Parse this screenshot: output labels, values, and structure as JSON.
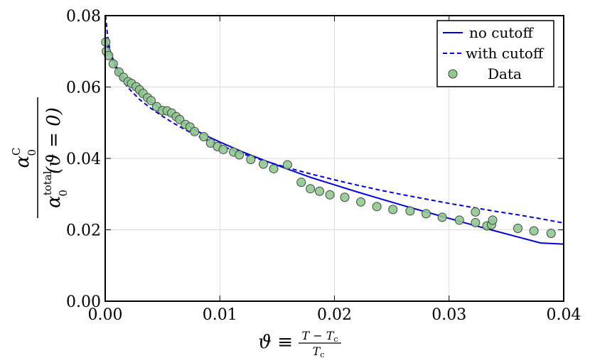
{
  "chart_data": {
    "type": "scatter",
    "xlabel": {
      "main": "ϑ ≡",
      "numerator": "T − T",
      "numerator_sub": "c",
      "denominator": "T",
      "denominator_sub": "c"
    },
    "ylabel": {
      "numerator": "α",
      "numerator_sub": "0",
      "numerator_sup": "C",
      "denominator": "α",
      "denominator_sub": "0",
      "denominator_sup": "total",
      "denominator_rest": "(ϑ = 0)"
    },
    "xlim": [
      0,
      0.04
    ],
    "ylim": [
      0,
      0.08
    ],
    "x_ticks": [
      "0.00",
      "0.01",
      "0.02",
      "0.03",
      "0.04"
    ],
    "y_ticks": [
      "0.00",
      "0.02",
      "0.04",
      "0.06",
      "0.08"
    ],
    "grid": true,
    "legend_position": "top-right",
    "series": [
      {
        "name": "no cutoff",
        "kind": "line",
        "style": "solid",
        "color": "#0000dd",
        "x": [
          5e-05,
          0.0003,
          0.0006,
          0.001,
          0.0015,
          0.002,
          0.003,
          0.004,
          0.005,
          0.006,
          0.007,
          0.008,
          0.009,
          0.01,
          0.012,
          0.014,
          0.016,
          0.018,
          0.02,
          0.022,
          0.024,
          0.026,
          0.028,
          0.03,
          0.032,
          0.034,
          0.036,
          0.038,
          0.04
        ],
        "y": [
          0.074,
          0.0705,
          0.0685,
          0.0655,
          0.063,
          0.0612,
          0.0583,
          0.0558,
          0.0536,
          0.0515,
          0.0496,
          0.0477,
          0.0461,
          0.0446,
          0.0418,
          0.0393,
          0.0369,
          0.0346,
          0.0326,
          0.0306,
          0.0287,
          0.0268,
          0.025,
          0.0232,
          0.0214,
          0.0197,
          0.018,
          0.0163,
          0.016
        ]
      },
      {
        "name": "with cutoff",
        "kind": "line",
        "style": "dashed",
        "color": "#0000dd",
        "x": [
          3e-05,
          0.0002,
          0.0004,
          0.0007,
          0.001,
          0.0015,
          0.002,
          0.003,
          0.004,
          0.005,
          0.006,
          0.007,
          0.008,
          0.009,
          0.01,
          0.012,
          0.014,
          0.016,
          0.018,
          0.02,
          0.022,
          0.024,
          0.026,
          0.028,
          0.03,
          0.032,
          0.034,
          0.036,
          0.038,
          0.04
        ],
        "y": [
          0.08,
          0.0745,
          0.0705,
          0.067,
          0.0645,
          0.0618,
          0.0598,
          0.0565,
          0.054,
          0.0518,
          0.0498,
          0.048,
          0.0464,
          0.045,
          0.0437,
          0.0413,
          0.0392,
          0.0373,
          0.0356,
          0.034,
          0.0325,
          0.0311,
          0.0298,
          0.0286,
          0.0274,
          0.0263,
          0.0252,
          0.0242,
          0.0231,
          0.0219
        ]
      },
      {
        "name": "Data",
        "kind": "scatter",
        "color": "#8fc98f",
        "edge": "#444444",
        "x": [
          5e-05,
          0.0001,
          0.0003,
          0.0007,
          0.0012,
          0.0016,
          0.002,
          0.0023,
          0.0027,
          0.003,
          0.0033,
          0.0037,
          0.004,
          0.0045,
          0.005,
          0.0054,
          0.0058,
          0.0062,
          0.0065,
          0.007,
          0.0074,
          0.0078,
          0.0086,
          0.0092,
          0.0098,
          0.0103,
          0.0112,
          0.0117,
          0.0127,
          0.0138,
          0.0147,
          0.0159,
          0.0171,
          0.0179,
          0.0187,
          0.0196,
          0.0209,
          0.0223,
          0.0237,
          0.0251,
          0.0266,
          0.028,
          0.0294,
          0.0309,
          0.0323,
          0.0323,
          0.0333,
          0.0337,
          0.0338,
          0.036,
          0.0374,
          0.0389
        ],
        "y": [
          0.0726,
          0.07,
          0.0688,
          0.0665,
          0.0642,
          0.0627,
          0.0615,
          0.061,
          0.0601,
          0.0592,
          0.0582,
          0.057,
          0.0562,
          0.0545,
          0.0534,
          0.0533,
          0.0527,
          0.0517,
          0.0509,
          0.0495,
          0.0488,
          0.0475,
          0.0461,
          0.0443,
          0.0433,
          0.0425,
          0.0418,
          0.041,
          0.0397,
          0.0384,
          0.0371,
          0.0382,
          0.0333,
          0.0315,
          0.0308,
          0.0298,
          0.0291,
          0.0278,
          0.0265,
          0.0257,
          0.0253,
          0.0245,
          0.0235,
          0.0227,
          0.025,
          0.022,
          0.0211,
          0.0214,
          0.0227,
          0.0204,
          0.0197,
          0.019
        ]
      }
    ]
  },
  "colors": {
    "line": "#0000dd",
    "marker_fill": "#8fc98f",
    "marker_edge": "#444444",
    "grid": "#dddddd"
  }
}
